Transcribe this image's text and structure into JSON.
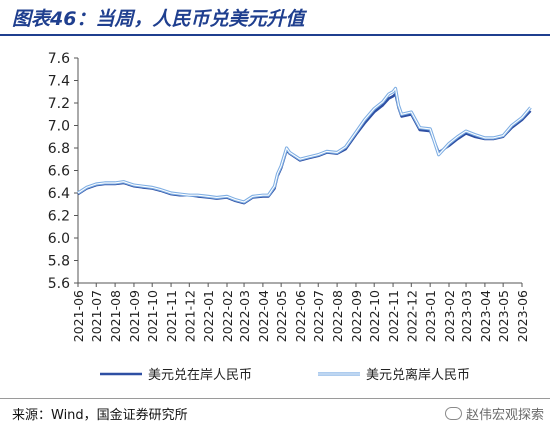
{
  "title": "图表46：当周，人民币兑美元升值",
  "source": "来源：Wind，国金证券研究所",
  "watermark": "赵伟宏观探索",
  "colors": {
    "onshore": "#2e4fa3",
    "offshore": "#7eaee3",
    "accent": "#1f3f8f"
  },
  "chart_data": {
    "type": "line",
    "title": "",
    "xlabel": "",
    "ylabel": "",
    "ylim": [
      5.6,
      7.6
    ],
    "yticks": [
      "7.6",
      "7.4",
      "7.2",
      "7.0",
      "6.8",
      "6.6",
      "6.4",
      "6.2",
      "6.0",
      "5.8",
      "5.6"
    ],
    "xticks": [
      "2021-06",
      "2021-07",
      "2021-08",
      "2021-09",
      "2021-10",
      "2021-11",
      "2021-12",
      "2022-01",
      "2022-02",
      "2022-03",
      "2022-04",
      "2022-05",
      "2022-06",
      "2022-07",
      "2022-08",
      "2022-09",
      "2022-10",
      "2022-11",
      "2022-12",
      "2023-01",
      "2023-02",
      "2023-03",
      "2023-04",
      "2023-05",
      "2023-06"
    ],
    "grid": false,
    "legend_position": "bottom",
    "series": [
      {
        "name": "美元兑在岸人民币",
        "style": "thick",
        "x": [
          "2021-06-01",
          "2021-06-15",
          "2021-07-01",
          "2021-07-15",
          "2021-08-01",
          "2021-08-15",
          "2021-09-01",
          "2021-09-15",
          "2021-10-01",
          "2021-10-15",
          "2021-11-01",
          "2021-11-15",
          "2021-12-01",
          "2021-12-15",
          "2022-01-01",
          "2022-01-15",
          "2022-02-01",
          "2022-02-15",
          "2022-03-01",
          "2022-03-15",
          "2022-04-01",
          "2022-04-10",
          "2022-04-20",
          "2022-04-25",
          "2022-05-01",
          "2022-05-10",
          "2022-05-15",
          "2022-06-01",
          "2022-06-15",
          "2022-07-01",
          "2022-07-15",
          "2022-08-01",
          "2022-08-15",
          "2022-09-01",
          "2022-09-15",
          "2022-10-01",
          "2022-10-15",
          "2022-10-25",
          "2022-11-01",
          "2022-11-05",
          "2022-11-10",
          "2022-11-15",
          "2022-12-01",
          "2022-12-15",
          "2023-01-01",
          "2023-01-15",
          "2023-02-01",
          "2023-02-15",
          "2023-03-01",
          "2023-03-15",
          "2023-04-01",
          "2023-04-15",
          "2023-05-01",
          "2023-05-15",
          "2023-06-01",
          "2023-06-15"
        ],
        "y": [
          6.39,
          6.44,
          6.47,
          6.48,
          6.48,
          6.49,
          6.46,
          6.45,
          6.44,
          6.42,
          6.39,
          6.38,
          6.38,
          6.37,
          6.36,
          6.35,
          6.36,
          6.33,
          6.31,
          6.36,
          6.37,
          6.37,
          6.44,
          6.55,
          6.62,
          6.78,
          6.75,
          6.69,
          6.71,
          6.73,
          6.76,
          6.75,
          6.79,
          6.92,
          7.02,
          7.12,
          7.18,
          7.24,
          7.26,
          7.28,
          7.16,
          7.08,
          7.1,
          6.96,
          6.95,
          6.76,
          6.82,
          6.88,
          6.93,
          6.9,
          6.88,
          6.88,
          6.9,
          6.98,
          7.05,
          7.13
        ]
      },
      {
        "name": "美元兑离岸人民币",
        "style": "double",
        "x": [
          "2021-06-01",
          "2021-06-15",
          "2021-07-01",
          "2021-07-15",
          "2021-08-01",
          "2021-08-15",
          "2021-09-01",
          "2021-09-15",
          "2021-10-01",
          "2021-10-15",
          "2021-11-01",
          "2021-11-15",
          "2021-12-01",
          "2021-12-15",
          "2022-01-01",
          "2022-01-15",
          "2022-02-01",
          "2022-02-15",
          "2022-03-01",
          "2022-03-15",
          "2022-04-01",
          "2022-04-10",
          "2022-04-20",
          "2022-04-25",
          "2022-05-01",
          "2022-05-10",
          "2022-05-15",
          "2022-06-01",
          "2022-06-15",
          "2022-07-01",
          "2022-07-15",
          "2022-08-01",
          "2022-08-15",
          "2022-09-01",
          "2022-09-15",
          "2022-10-01",
          "2022-10-15",
          "2022-10-25",
          "2022-11-01",
          "2022-11-05",
          "2022-11-10",
          "2022-11-15",
          "2022-12-01",
          "2022-12-15",
          "2023-01-01",
          "2023-01-15",
          "2023-02-01",
          "2023-02-15",
          "2023-03-01",
          "2023-03-15",
          "2023-04-01",
          "2023-04-15",
          "2023-05-01",
          "2023-05-15",
          "2023-06-01",
          "2023-06-15"
        ],
        "y": [
          6.4,
          6.45,
          6.48,
          6.49,
          6.49,
          6.5,
          6.47,
          6.46,
          6.45,
          6.43,
          6.4,
          6.39,
          6.38,
          6.38,
          6.37,
          6.36,
          6.37,
          6.34,
          6.32,
          6.37,
          6.38,
          6.38,
          6.46,
          6.57,
          6.64,
          6.8,
          6.76,
          6.7,
          6.72,
          6.74,
          6.77,
          6.76,
          6.81,
          6.94,
          7.05,
          7.15,
          7.21,
          7.28,
          7.3,
          7.33,
          7.18,
          7.1,
          7.12,
          6.98,
          6.97,
          6.74,
          6.84,
          6.9,
          6.95,
          6.92,
          6.89,
          6.89,
          6.91,
          7.0,
          7.07,
          7.16
        ]
      }
    ]
  }
}
